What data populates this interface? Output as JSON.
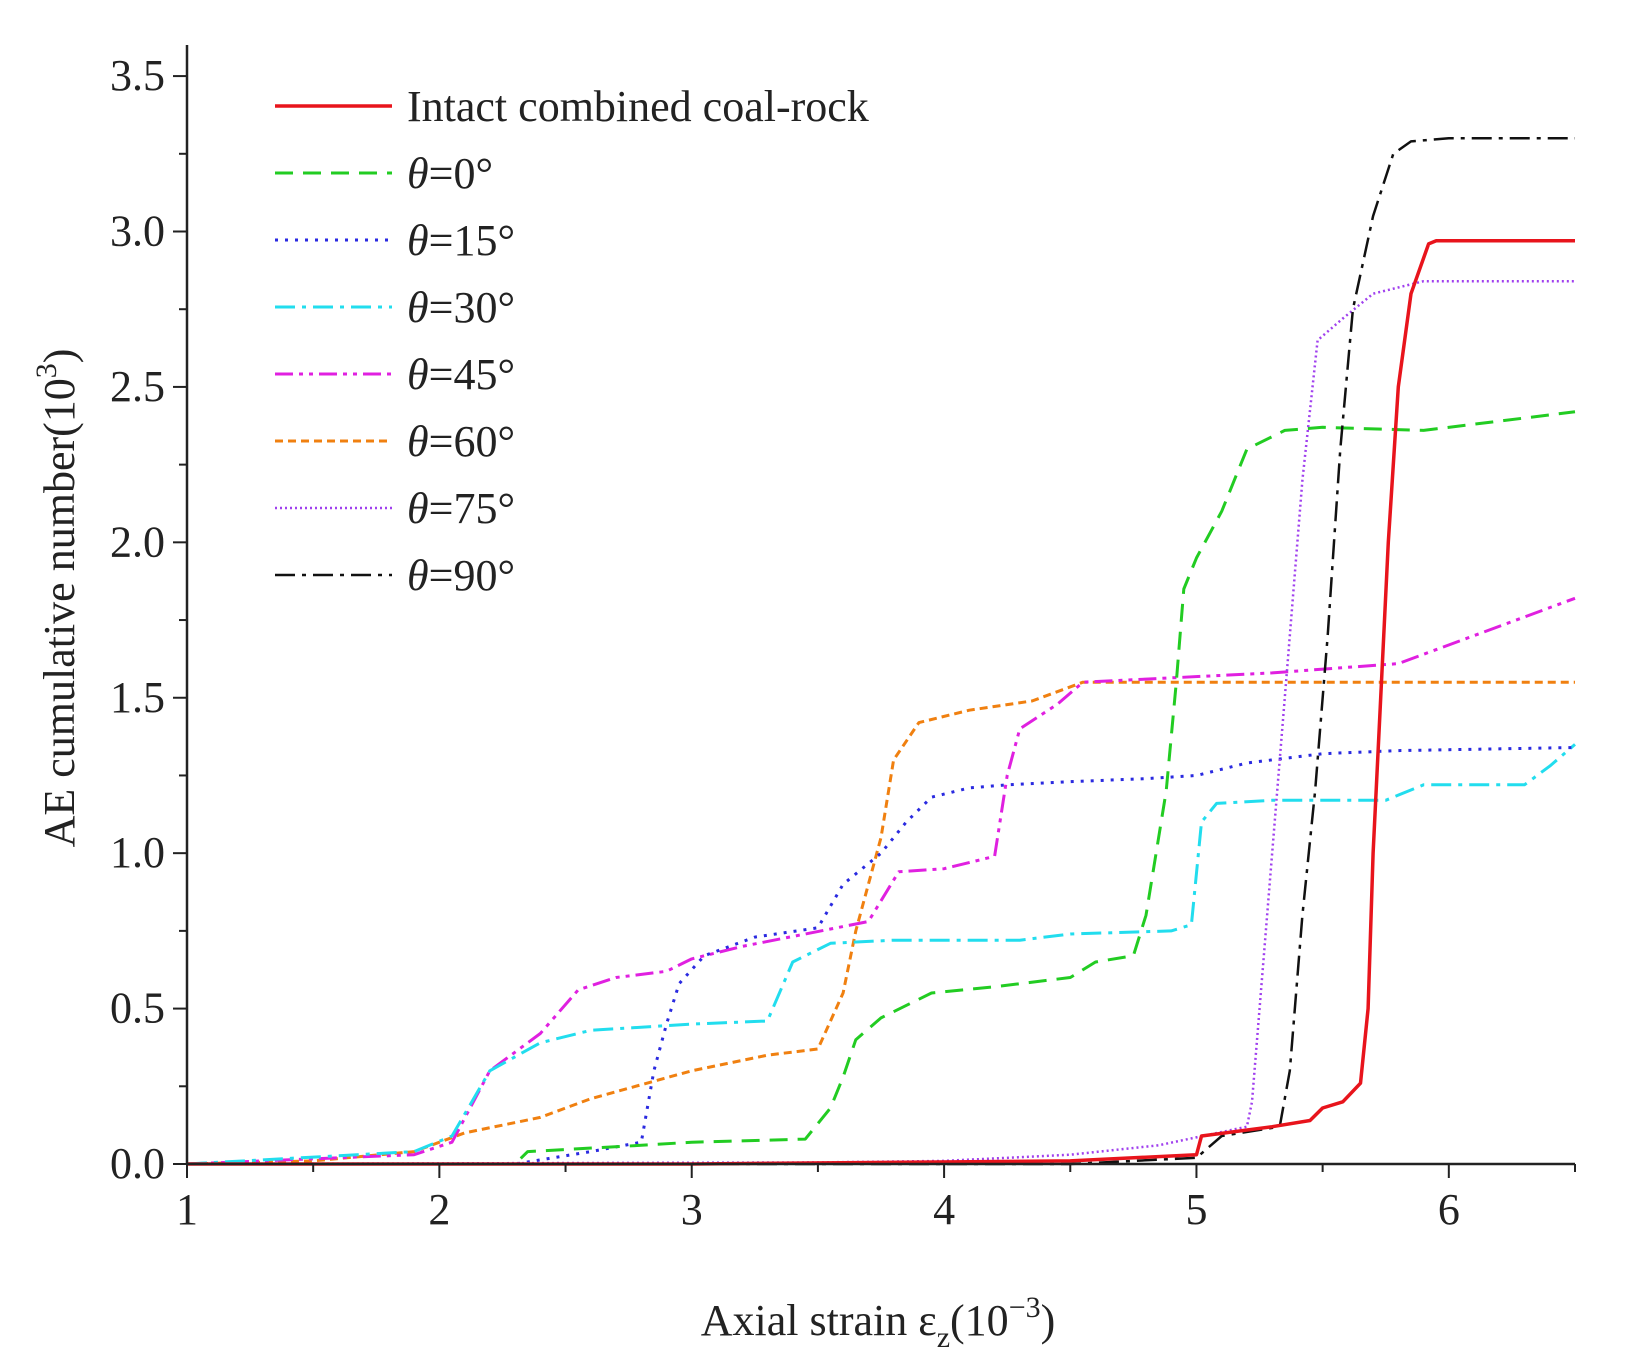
{
  "chart_data": {
    "type": "line",
    "title": "",
    "xlabel": {
      "main": "Axial strain ε",
      "sub": "z",
      "paren_open": "(10",
      "sup": "−3",
      "paren_close": ")"
    },
    "ylabel": {
      "main": "AE cumulative number(10",
      "sup": "3",
      "close": ")"
    },
    "xlim": [
      1,
      6.5
    ],
    "ylim": [
      0,
      3.6
    ],
    "xticks": [
      1,
      2,
      3,
      4,
      5,
      6
    ],
    "xtick_labels": [
      "1",
      "2",
      "3",
      "4",
      "5",
      "6"
    ],
    "yticks": [
      0,
      0.5,
      1.0,
      1.5,
      2.0,
      2.5,
      3.0,
      3.5
    ],
    "ytick_labels": [
      "0.0",
      "0.5",
      "1.0",
      "1.5",
      "2.0",
      "2.5",
      "3.0",
      "3.5"
    ],
    "grid": false,
    "legend_position": "top-left",
    "series": [
      {
        "name": "Intact combined coal-rock",
        "prefix": "",
        "label": "Intact combined coal-rock",
        "color": "#e8141c",
        "dash": "solid",
        "width": 3.5,
        "points": [
          [
            1,
            0
          ],
          [
            3,
            0
          ],
          [
            4.5,
            0.01
          ],
          [
            5,
            0.03
          ],
          [
            5.02,
            0.09
          ],
          [
            5.3,
            0.12
          ],
          [
            5.45,
            0.14
          ],
          [
            5.5,
            0.18
          ],
          [
            5.58,
            0.2
          ],
          [
            5.65,
            0.26
          ],
          [
            5.68,
            0.5
          ],
          [
            5.7,
            1.0
          ],
          [
            5.73,
            1.5
          ],
          [
            5.76,
            2.0
          ],
          [
            5.8,
            2.5
          ],
          [
            5.85,
            2.8
          ],
          [
            5.92,
            2.96
          ],
          [
            5.95,
            2.97
          ],
          [
            6.5,
            2.97
          ]
        ]
      },
      {
        "name": "θ=0°",
        "prefix": "θ",
        "label": "=0°",
        "color": "#22cc22",
        "dash": "dashed",
        "width": 3,
        "points": [
          [
            1,
            0
          ],
          [
            2.3,
            0
          ],
          [
            2.35,
            0.04
          ],
          [
            2.8,
            0.06
          ],
          [
            3,
            0.07
          ],
          [
            3.45,
            0.08
          ],
          [
            3.55,
            0.18
          ],
          [
            3.6,
            0.28
          ],
          [
            3.65,
            0.4
          ],
          [
            3.75,
            0.47
          ],
          [
            3.95,
            0.55
          ],
          [
            4.2,
            0.57
          ],
          [
            4.5,
            0.6
          ],
          [
            4.6,
            0.65
          ],
          [
            4.75,
            0.67
          ],
          [
            4.8,
            0.8
          ],
          [
            4.88,
            1.2
          ],
          [
            4.92,
            1.55
          ],
          [
            4.95,
            1.85
          ],
          [
            5.0,
            1.95
          ],
          [
            5.1,
            2.1
          ],
          [
            5.2,
            2.3
          ],
          [
            5.35,
            2.36
          ],
          [
            5.5,
            2.37
          ],
          [
            5.9,
            2.36
          ],
          [
            6.1,
            2.38
          ],
          [
            6.5,
            2.42
          ]
        ]
      },
      {
        "name": "θ=15°",
        "prefix": "θ",
        "label": "=15°",
        "color": "#2a2ae0",
        "dash": "dotted",
        "width": 3,
        "points": [
          [
            1,
            0
          ],
          [
            2.3,
            0
          ],
          [
            2.6,
            0.04
          ],
          [
            2.8,
            0.07
          ],
          [
            2.85,
            0.3
          ],
          [
            2.9,
            0.45
          ],
          [
            2.95,
            0.58
          ],
          [
            3.05,
            0.67
          ],
          [
            3.25,
            0.73
          ],
          [
            3.5,
            0.76
          ],
          [
            3.6,
            0.9
          ],
          [
            3.75,
            1.0
          ],
          [
            3.85,
            1.1
          ],
          [
            3.95,
            1.18
          ],
          [
            4.1,
            1.21
          ],
          [
            4.25,
            1.22
          ],
          [
            4.5,
            1.23
          ],
          [
            4.8,
            1.24
          ],
          [
            5,
            1.25
          ],
          [
            5.2,
            1.29
          ],
          [
            5.5,
            1.32
          ],
          [
            5.8,
            1.33
          ],
          [
            6.5,
            1.34
          ]
        ]
      },
      {
        "name": "θ=30°",
        "prefix": "θ",
        "label": "=30°",
        "color": "#22ddee",
        "dash": "dashdot",
        "width": 3,
        "points": [
          [
            1,
            0
          ],
          [
            1.9,
            0.04
          ],
          [
            2.05,
            0.09
          ],
          [
            2.2,
            0.3
          ],
          [
            2.4,
            0.39
          ],
          [
            2.6,
            0.43
          ],
          [
            3,
            0.45
          ],
          [
            3.3,
            0.46
          ],
          [
            3.4,
            0.65
          ],
          [
            3.55,
            0.71
          ],
          [
            3.8,
            0.72
          ],
          [
            4.3,
            0.72
          ],
          [
            4.5,
            0.74
          ],
          [
            4.9,
            0.75
          ],
          [
            4.98,
            0.77
          ],
          [
            5.02,
            1.1
          ],
          [
            5.08,
            1.16
          ],
          [
            5.3,
            1.17
          ],
          [
            5.75,
            1.17
          ],
          [
            5.9,
            1.22
          ],
          [
            6.3,
            1.22
          ],
          [
            6.4,
            1.28
          ],
          [
            6.5,
            1.35
          ]
        ]
      },
      {
        "name": "θ=45°",
        "prefix": "θ",
        "label": "=45°",
        "color": "#e020e0",
        "dash": "dashdotdot",
        "width": 3,
        "points": [
          [
            1,
            0
          ],
          [
            1.9,
            0.03
          ],
          [
            2.05,
            0.07
          ],
          [
            2.2,
            0.3
          ],
          [
            2.4,
            0.42
          ],
          [
            2.55,
            0.56
          ],
          [
            2.7,
            0.6
          ],
          [
            2.9,
            0.62
          ],
          [
            3.0,
            0.66
          ],
          [
            3.2,
            0.7
          ],
          [
            3.45,
            0.74
          ],
          [
            3.7,
            0.78
          ],
          [
            3.82,
            0.94
          ],
          [
            4.0,
            0.95
          ],
          [
            4.2,
            0.99
          ],
          [
            4.25,
            1.25
          ],
          [
            4.3,
            1.4
          ],
          [
            4.45,
            1.48
          ],
          [
            4.55,
            1.55
          ],
          [
            4.8,
            1.56
          ],
          [
            5.3,
            1.58
          ],
          [
            5.8,
            1.61
          ],
          [
            6.1,
            1.7
          ],
          [
            6.5,
            1.82
          ]
        ]
      },
      {
        "name": "θ=60°",
        "prefix": "θ",
        "label": "=60°",
        "color": "#f08010",
        "dash": "shortdash",
        "width": 3,
        "points": [
          [
            1,
            0
          ],
          [
            1.5,
            0.01
          ],
          [
            1.9,
            0.04
          ],
          [
            2.1,
            0.1
          ],
          [
            2.4,
            0.15
          ],
          [
            2.6,
            0.21
          ],
          [
            3.0,
            0.3
          ],
          [
            3.3,
            0.35
          ],
          [
            3.5,
            0.37
          ],
          [
            3.6,
            0.55
          ],
          [
            3.65,
            0.75
          ],
          [
            3.75,
            1.05
          ],
          [
            3.8,
            1.3
          ],
          [
            3.9,
            1.42
          ],
          [
            4.1,
            1.46
          ],
          [
            4.35,
            1.49
          ],
          [
            4.55,
            1.55
          ],
          [
            5.0,
            1.55
          ],
          [
            6.5,
            1.55
          ]
        ]
      },
      {
        "name": "θ=75°",
        "prefix": "θ",
        "label": "=75°",
        "color": "#a040ee",
        "dash": "finedot",
        "width": 2.5,
        "points": [
          [
            1,
            0
          ],
          [
            3.5,
            0.005
          ],
          [
            4.0,
            0.01
          ],
          [
            4.5,
            0.03
          ],
          [
            4.85,
            0.06
          ],
          [
            5.2,
            0.12
          ],
          [
            5.22,
            0.2
          ],
          [
            5.27,
            0.7
          ],
          [
            5.32,
            1.2
          ],
          [
            5.36,
            1.6
          ],
          [
            5.42,
            2.2
          ],
          [
            5.48,
            2.65
          ],
          [
            5.58,
            2.72
          ],
          [
            5.7,
            2.8
          ],
          [
            5.9,
            2.84
          ],
          [
            6.5,
            2.84
          ]
        ]
      },
      {
        "name": "θ=90°",
        "prefix": "θ",
        "label": "=90°",
        "color": "#111111",
        "dash": "dashdot",
        "width": 2.5,
        "points": [
          [
            1,
            0
          ],
          [
            4.5,
            0
          ],
          [
            5.0,
            0.02
          ],
          [
            5.1,
            0.09
          ],
          [
            5.33,
            0.12
          ],
          [
            5.37,
            0.3
          ],
          [
            5.42,
            0.8
          ],
          [
            5.47,
            1.2
          ],
          [
            5.52,
            1.7
          ],
          [
            5.57,
            2.3
          ],
          [
            5.62,
            2.75
          ],
          [
            5.7,
            3.05
          ],
          [
            5.78,
            3.25
          ],
          [
            5.85,
            3.29
          ],
          [
            6.0,
            3.3
          ],
          [
            6.5,
            3.3
          ]
        ]
      }
    ]
  }
}
